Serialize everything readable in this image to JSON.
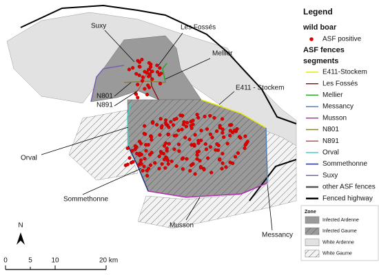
{
  "legend": {
    "title": "Legend",
    "wild_boar_heading": "wild boar",
    "asf_positive": "ASF positive",
    "fences_heading": "ASF fences",
    "segments_heading": "segments",
    "segments": [
      {
        "label": "E411-Stockem",
        "color": "#e8e800"
      },
      {
        "label": "Les Fossés",
        "color": "#8b1a1a"
      },
      {
        "label": "Mellier",
        "color": "#2ca02c"
      },
      {
        "label": "Messancy",
        "color": "#4f81bd"
      },
      {
        "label": "Musson",
        "color": "#b030b0"
      },
      {
        "label": "N801",
        "color": "#8b7d3a"
      },
      {
        "label": "N891",
        "color": "#c0504d"
      },
      {
        "label": "Orval",
        "color": "#30d8c8"
      },
      {
        "label": "Sommethonne",
        "color": "#1f2f7f"
      },
      {
        "label": "Suxy",
        "color": "#7a5fb0"
      },
      {
        "label": "other ASF fences",
        "color": "#555555"
      },
      {
        "label": "Fenced highway",
        "color": "#000000"
      }
    ],
    "zone": {
      "title": "Zone",
      "items": [
        {
          "label": "Infected Ardenne",
          "fill": "#9a9a9a",
          "hatch": false
        },
        {
          "label": "Infected Gaume",
          "fill": "#9a9a9a",
          "hatch": true
        },
        {
          "label": "White Ardenne",
          "fill": "#e2e2e2",
          "hatch": false
        },
        {
          "label": "White Gaume",
          "fill": "#f4f4f4",
          "hatch": true
        }
      ]
    }
  },
  "map_labels": [
    "Suxy",
    "Les Fossés",
    "Mellier",
    "E411 - Stockem",
    "N801",
    "N891",
    "Orval",
    "Sommethonne",
    "Messancy",
    "Musson"
  ],
  "north": "N",
  "scale_bar": [
    "0",
    "5",
    "10",
    "20 km"
  ]
}
